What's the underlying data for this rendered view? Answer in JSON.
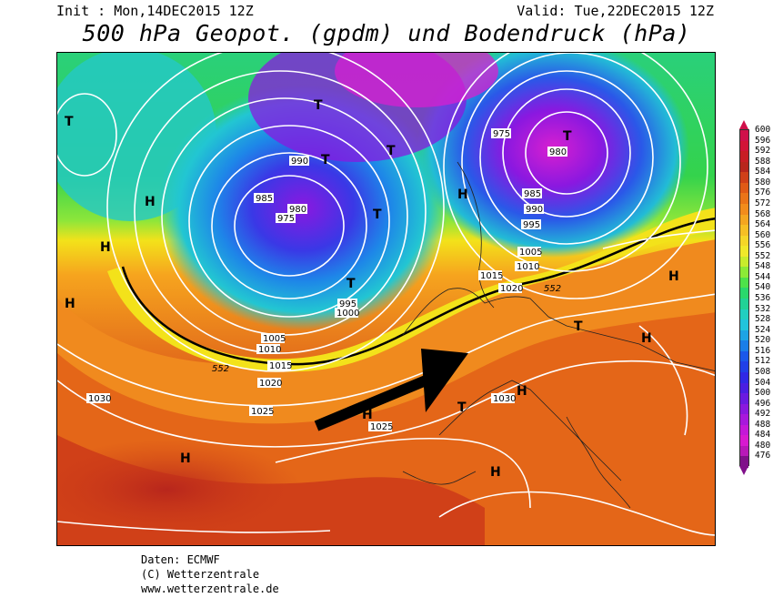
{
  "header": {
    "init": "Init : Mon,14DEC2015 12Z",
    "valid": "Valid: Tue,22DEC2015 12Z",
    "title": "500 hPa Geopot. (gpdm) und Bodendruck (hPa)"
  },
  "map": {
    "highs_label": "H",
    "lows_label": "T",
    "contour_label_552": "552",
    "isobar_labels": [
      "1030",
      "1025",
      "1020",
      "1015",
      "1010",
      "1005",
      "1000",
      "995",
      "990",
      "985",
      "980",
      "975",
      "1030",
      "1025",
      "1020",
      "1015",
      "1010",
      "1005",
      "1000",
      "995",
      "990",
      "985",
      "980",
      "975"
    ],
    "colors": {
      "ocean_south": "#d4452a",
      "orange": "#f08a1e",
      "yellow": "#f3e21a",
      "green": "#34d34c",
      "cyan": "#24c8c8",
      "blue": "#2a5be6",
      "violet": "#8b20e6",
      "magenta": "#d81fd0"
    }
  },
  "legend": {
    "values": [
      "600",
      "596",
      "592",
      "588",
      "584",
      "580",
      "576",
      "572",
      "568",
      "564",
      "560",
      "556",
      "552",
      "548",
      "544",
      "540",
      "536",
      "532",
      "528",
      "524",
      "520",
      "516",
      "512",
      "508",
      "504",
      "500",
      "496",
      "492",
      "488",
      "484",
      "480",
      "476"
    ],
    "colors": [
      "#d0104a",
      "#d21437",
      "#c81e24",
      "#b8261c",
      "#d04018",
      "#e05a16",
      "#ea7418",
      "#f28c1c",
      "#f4a620",
      "#f6bf24",
      "#f5d628",
      "#f0e82a",
      "#c8ec2c",
      "#8cea36",
      "#4ee24a",
      "#2ad86c",
      "#22d296",
      "#22cfc0",
      "#22c4dc",
      "#1ea4e4",
      "#1a7ee8",
      "#1a58ea",
      "#2040e8",
      "#3028e6",
      "#4a1ee2",
      "#6a1ae0",
      "#8a18de",
      "#a818dc",
      "#c418d8",
      "#d81ad0",
      "#b818b8",
      "#80108a"
    ]
  },
  "footer": {
    "line1": "Daten: ECMWF",
    "line2": "(C) Wetterzentrale",
    "line3": "www.wetterzentrale.de"
  }
}
